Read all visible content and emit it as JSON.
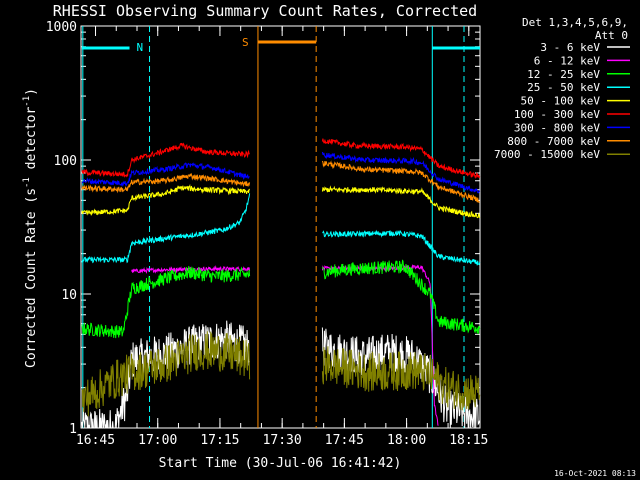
{
  "chart_data": {
    "type": "line",
    "title": "RHESSI Observing Summary Count Rates, Corrected",
    "xlabel": "Start Time (30-Jul-06 16:41:42)",
    "ylabel": "Corrected Count Rate (s",
    "ylabel_sup1": "-1",
    "ylabel_mid": " detector",
    "ylabel_sup2": "-1",
    "ylabel_end": ")",
    "yscale": "log",
    "ylim": [
      1,
      1000
    ],
    "xlim_minutes": [
      -0.2,
      96
    ],
    "x_ticks": [
      {
        "min": 3.3,
        "label": "16:45"
      },
      {
        "min": 18.3,
        "label": "17:00"
      },
      {
        "min": 33.3,
        "label": "17:15"
      },
      {
        "min": 48.3,
        "label": "17:30"
      },
      {
        "min": 63.3,
        "label": "17:45"
      },
      {
        "min": 78.3,
        "label": "18:00"
      },
      {
        "min": 93.3,
        "label": "18:15"
      }
    ],
    "y_ticks": [
      {
        "value": 1,
        "label": "1"
      },
      {
        "value": 10,
        "label": "10"
      },
      {
        "value": 100,
        "label": "100"
      },
      {
        "value": 1000,
        "label": "1000"
      }
    ],
    "legend_header": [
      "Det 1,3,4,5,6,9,",
      "Att 0"
    ],
    "legend_placement": "right",
    "segments": [
      [
        0,
        40.5
      ],
      [
        58,
        96
      ]
    ],
    "series": [
      {
        "name": "3 - 6 keV",
        "color": "#ffffff",
        "points": [
          [
            0,
            1
          ],
          [
            8,
            1
          ],
          [
            11,
            1.8
          ],
          [
            12,
            3.2
          ],
          [
            20,
            3.6
          ],
          [
            28,
            4.3
          ],
          [
            34,
            4.6
          ],
          [
            39.5,
            4.1
          ],
          [
            40.5,
            4
          ],
          [
            58,
            4
          ],
          [
            68,
            3.4
          ],
          [
            74,
            3.7
          ],
          [
            80,
            3.4
          ],
          [
            84,
            2.5
          ],
          [
            88,
            1.4
          ],
          [
            96,
            1.2
          ]
        ]
      },
      {
        "name": "6 - 12 keV",
        "color": "#ff00ff",
        "points": [
          [
            12,
            14.8
          ],
          [
            20,
            15.2
          ],
          [
            30,
            15.4
          ],
          [
            38,
            15.4
          ],
          [
            39.5,
            15.4
          ],
          [
            58,
            15.5
          ],
          [
            70,
            15.5
          ],
          [
            82,
            15.8
          ],
          [
            84,
            12
          ],
          [
            85,
            1.5
          ],
          [
            86,
            1
          ]
        ]
      },
      {
        "name": "12 - 25 keV",
        "color": "#00ff00",
        "points": [
          [
            0,
            5.5
          ],
          [
            10,
            5.2
          ],
          [
            12,
            11
          ],
          [
            18,
            12.5
          ],
          [
            26,
            14.5
          ],
          [
            32,
            13.5
          ],
          [
            39.5,
            14
          ],
          [
            58,
            14.5
          ],
          [
            66,
            15.5
          ],
          [
            78,
            16
          ],
          [
            84,
            10
          ],
          [
            86,
            6.2
          ],
          [
            96,
            5.6
          ]
        ]
      },
      {
        "name": "25 - 50 keV",
        "color": "#00ffff",
        "points": [
          [
            0,
            18
          ],
          [
            11,
            18
          ],
          [
            12,
            24
          ],
          [
            20,
            26
          ],
          [
            28,
            28
          ],
          [
            34,
            30
          ],
          [
            38,
            34
          ],
          [
            39.5,
            42
          ],
          [
            40.5,
            55
          ],
          [
            58,
            28
          ],
          [
            66,
            28
          ],
          [
            76,
            28.5
          ],
          [
            82,
            27
          ],
          [
            86,
            19
          ],
          [
            96,
            17
          ]
        ]
      },
      {
        "name": "50 - 100 keV",
        "color": "#ffff00",
        "points": [
          [
            0,
            40
          ],
          [
            11,
            42
          ],
          [
            12,
            52
          ],
          [
            20,
            56
          ],
          [
            24,
            62
          ],
          [
            30,
            60
          ],
          [
            39.5,
            58
          ],
          [
            58,
            60
          ],
          [
            70,
            60
          ],
          [
            82,
            58
          ],
          [
            86,
            44
          ],
          [
            96,
            38
          ]
        ]
      },
      {
        "name": "100 - 300 keV",
        "color": "#ff0000",
        "points": [
          [
            0,
            81
          ],
          [
            11,
            78
          ],
          [
            12,
            100
          ],
          [
            18,
            112
          ],
          [
            24,
            128
          ],
          [
            30,
            115
          ],
          [
            39.5,
            110
          ],
          [
            58,
            140
          ],
          [
            66,
            128
          ],
          [
            78,
            125
          ],
          [
            82,
            120
          ],
          [
            86,
            90
          ],
          [
            96,
            75
          ]
        ]
      },
      {
        "name": "300 - 800 keV",
        "color": "#0000ff",
        "points": [
          [
            0,
            70
          ],
          [
            11,
            67
          ],
          [
            12,
            80
          ],
          [
            20,
            85
          ],
          [
            26,
            92
          ],
          [
            32,
            87
          ],
          [
            39.5,
            75
          ],
          [
            58,
            110
          ],
          [
            68,
            100
          ],
          [
            80,
            98
          ],
          [
            82,
            95
          ],
          [
            86,
            72
          ],
          [
            96,
            58
          ]
        ]
      },
      {
        "name": "800 - 7000 keV",
        "color": "#ff8c00",
        "points": [
          [
            0,
            62
          ],
          [
            11,
            60
          ],
          [
            12,
            68
          ],
          [
            20,
            70
          ],
          [
            26,
            76
          ],
          [
            32,
            72
          ],
          [
            39.5,
            66
          ],
          [
            58,
            95
          ],
          [
            68,
            85
          ],
          [
            80,
            82
          ],
          [
            82,
            80
          ],
          [
            86,
            63
          ],
          [
            96,
            50
          ]
        ]
      },
      {
        "name": "7000 - 15000 keV",
        "color": "#808000",
        "points": [
          [
            0,
            1.6
          ],
          [
            8,
            2.3
          ],
          [
            12,
            2.6
          ],
          [
            20,
            3
          ],
          [
            28,
            3.8
          ],
          [
            34,
            3.7
          ],
          [
            39.5,
            3.3
          ],
          [
            40.5,
            3
          ],
          [
            58,
            3
          ],
          [
            70,
            2.6
          ],
          [
            80,
            2.7
          ],
          [
            84,
            2.5
          ],
          [
            88,
            2
          ],
          [
            96,
            1.8
          ]
        ]
      }
    ],
    "annotations": [
      {
        "type": "N",
        "color": "#00ffff",
        "label": "N",
        "x_start": 0,
        "x_end": 11.5,
        "x_end2": 96,
        "x_start2": 84.5
      },
      {
        "type": "S",
        "color": "#ff8c00",
        "label": "S",
        "x_start": 41.5,
        "x_end": 56.5
      }
    ],
    "timestamp": "16-Oct-2021 08:13"
  }
}
